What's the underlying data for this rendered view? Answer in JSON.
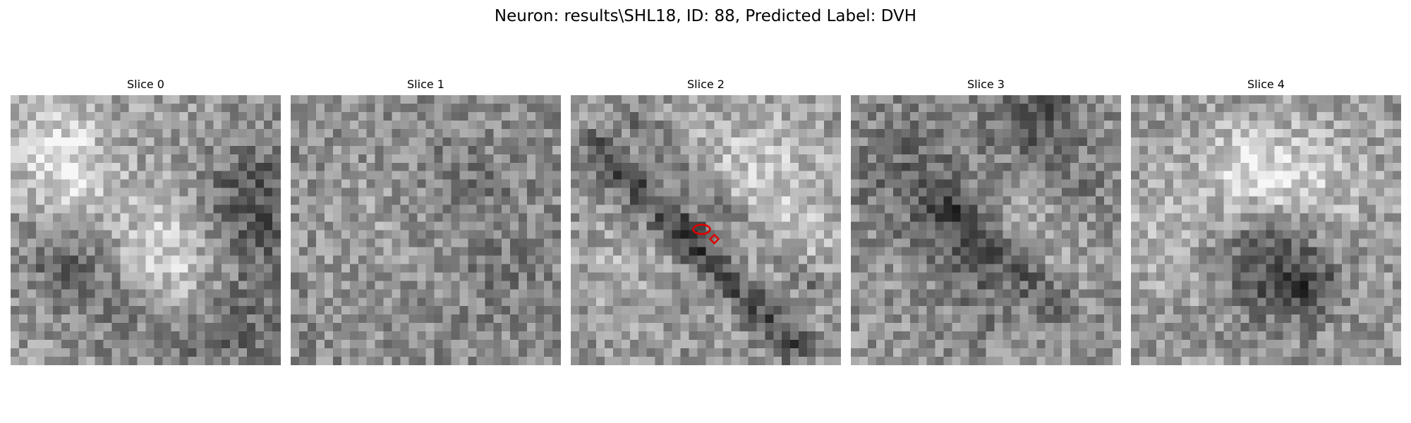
{
  "figure": {
    "title": "Neuron: results\\SHL18, ID: 88, Predicted Label: DVH"
  },
  "panels": [
    {
      "title": "Slice 0",
      "image": "grayscale-noise-patch"
    },
    {
      "title": "Slice 1",
      "image": "grayscale-noise-patch"
    },
    {
      "title": "Slice 2",
      "image": "grayscale-noise-patch",
      "overlay": "red-contour"
    },
    {
      "title": "Slice 3",
      "image": "grayscale-noise-patch"
    },
    {
      "title": "Slice 4",
      "image": "grayscale-noise-patch"
    }
  ],
  "colors": {
    "contour": "#dd0000",
    "background": "#ffffff"
  }
}
